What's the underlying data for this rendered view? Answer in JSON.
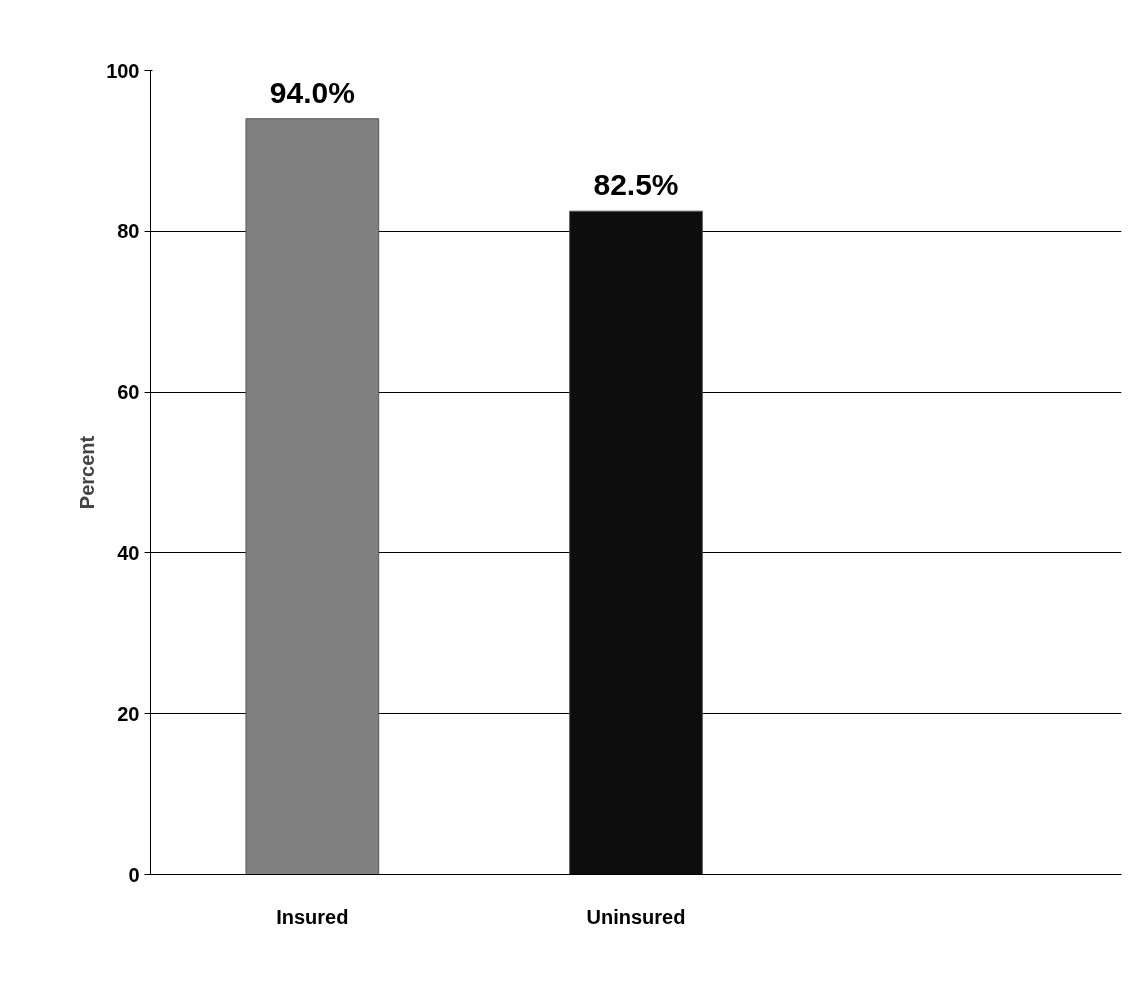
{
  "chart_data": {
    "type": "bar",
    "ylabel": "Percent",
    "categories": [
      "Insured",
      "Uninsured",
      null
    ],
    "series": [
      {
        "colors": [
          "#808080",
          "#0d0d0d",
          null
        ],
        "values": [
          94.0,
          82.5,
          null
        ],
        "value_labels": [
          "94.0%",
          "82.5%",
          null
        ]
      }
    ],
    "ylim": [
      0,
      100
    ],
    "yticks": [
      0,
      20,
      40,
      60,
      80,
      100
    ],
    "grid": "y"
  }
}
